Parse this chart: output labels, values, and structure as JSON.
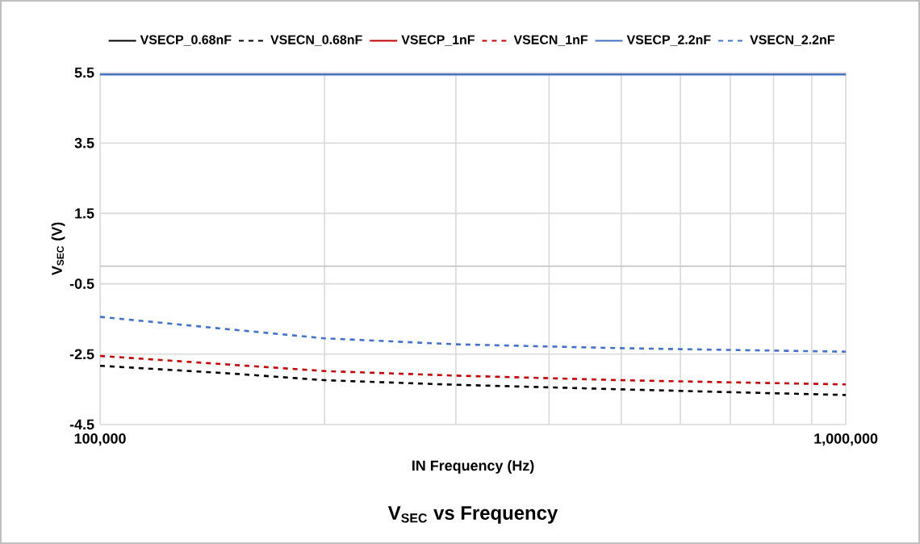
{
  "chart_data": {
    "type": "line",
    "title": "V$_{SEC}$ vs Frequency",
    "xlabel": "IN Frequency (Hz)",
    "ylabel": "V$_{SEC}$ (V)",
    "log": "x",
    "xlim": [
      100000,
      1000000
    ],
    "ylim": [
      -4.5,
      5.5
    ],
    "xticks": [
      {
        "value": 100000,
        "label": "100,000"
      },
      {
        "value": 200000,
        "label": null
      },
      {
        "value": 300000,
        "label": null
      },
      {
        "value": 400000,
        "label": null
      },
      {
        "value": 500000,
        "label": null
      },
      {
        "value": 600000,
        "label": null
      },
      {
        "value": 700000,
        "label": null
      },
      {
        "value": 800000,
        "label": null
      },
      {
        "value": 900000,
        "label": null
      },
      {
        "value": 1000000,
        "label": "1,000,000"
      }
    ],
    "yticks": [
      -4.5,
      -2.5,
      -0.5,
      1.5,
      3.5,
      5.5
    ],
    "x": [
      100000,
      150000,
      200000,
      300000,
      500000,
      700000,
      1000000
    ],
    "grid": true,
    "legend": "top",
    "marker": "none",
    "ref_lines": [
      {
        "axis": "y",
        "value": 0,
        "color": "#bfbfbf"
      }
    ],
    "series": [
      {
        "name": "VSECP_0.68nF",
        "color": "#000000",
        "line_style": "solid",
        "values": [
          null,
          null,
          null,
          null,
          null,
          null,
          null
        ]
      },
      {
        "name": "VSECN_0.68nF",
        "color": "#000000",
        "line_style": "dashed",
        "values": [
          -2.83,
          -3.05,
          -3.24,
          -3.37,
          -3.5,
          -3.58,
          -3.66
        ]
      },
      {
        "name": "VSECP_1nF",
        "color": "#c00000",
        "line_style": "solid",
        "values": [
          null,
          null,
          null,
          null,
          null,
          null,
          null
        ]
      },
      {
        "name": "VSECN_1nF",
        "color": "#c00000",
        "line_style": "dashed",
        "values": [
          -2.55,
          -2.8,
          -2.98,
          -3.11,
          -3.24,
          -3.3,
          -3.36
        ]
      },
      {
        "name": "VSECP_2.2nF",
        "color": "#4472c4",
        "line_style": "solid",
        "values": [
          5.45,
          5.45,
          5.45,
          5.45,
          5.45,
          5.45,
          5.45
        ]
      },
      {
        "name": "VSECN_2.2nF",
        "color": "#4472c4",
        "line_style": "dashed",
        "values": [
          -1.44,
          -1.8,
          -2.05,
          -2.22,
          -2.33,
          -2.38,
          -2.43
        ]
      }
    ]
  }
}
